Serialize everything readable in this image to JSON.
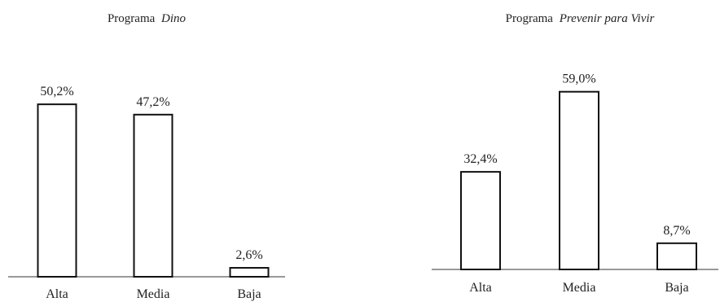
{
  "chart_data": [
    {
      "type": "bar",
      "title_prefix": "Programa",
      "title_emph": "Dino",
      "categories": [
        "Alta",
        "Media",
        "Baja"
      ],
      "values": [
        50.2,
        47.2,
        2.6
      ],
      "value_labels": [
        "50,2%",
        "47,2%",
        "2,6%"
      ],
      "ylim": [
        0,
        60
      ],
      "grid": false,
      "legend": "none"
    },
    {
      "type": "bar",
      "title_prefix": "Programa",
      "title_emph": "Prevenir para Vivir",
      "categories": [
        "Alta",
        "Media",
        "Baja"
      ],
      "values": [
        32.4,
        59.0,
        8.7
      ],
      "value_labels": [
        "32,4%",
        "59,0%",
        "8,7%"
      ],
      "ylim": [
        0,
        60
      ],
      "grid": false,
      "legend": "none"
    }
  ],
  "colors": {
    "bar_fill": "#ffffff",
    "bar_stroke": "#111111",
    "axis": "#333333"
  }
}
